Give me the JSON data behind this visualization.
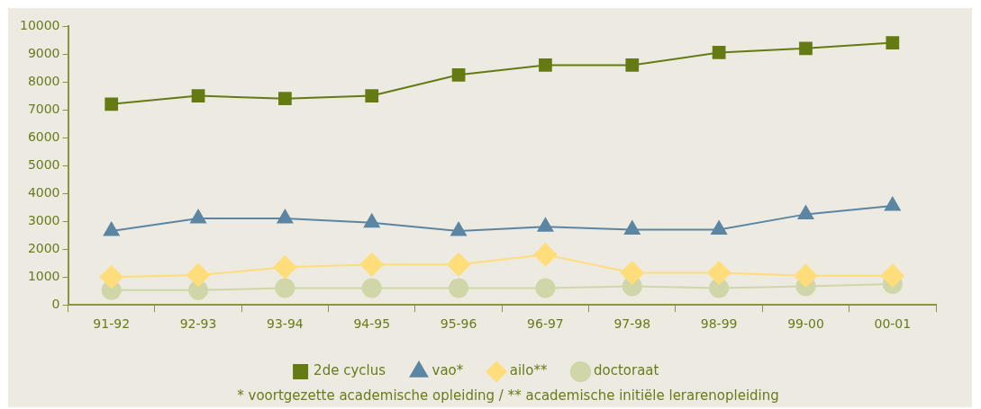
{
  "chart_data": {
    "type": "line",
    "categories": [
      "91-92",
      "92-93",
      "93-94",
      "94-95",
      "95-96",
      "96-97",
      "97-98",
      "98-99",
      "99-00",
      "00-01"
    ],
    "series": [
      {
        "name": "2de cyclus",
        "color": "#667a14",
        "marker": "square",
        "values": [
          7200,
          7500,
          7400,
          7500,
          8250,
          8600,
          8600,
          9050,
          9200,
          9400
        ]
      },
      {
        "name": "vao*",
        "color": "#5b86a3",
        "marker": "triangle",
        "values": [
          2650,
          3100,
          3100,
          2950,
          2650,
          2800,
          2700,
          2700,
          3250,
          3550
        ]
      },
      {
        "name": "ailo**",
        "color": "#fedd7a",
        "marker": "diamond",
        "values": [
          1000,
          1070,
          1350,
          1450,
          1450,
          1800,
          1150,
          1150,
          1050,
          1050
        ]
      },
      {
        "name": "doctoraat",
        "color": "#d0d6a8",
        "marker": "circle",
        "values": [
          530,
          530,
          600,
          600,
          600,
          600,
          670,
          600,
          670,
          750
        ]
      }
    ],
    "ylim": [
      0,
      10000
    ],
    "yticks": [
      0,
      1000,
      2000,
      3000,
      4000,
      5000,
      6000,
      7000,
      8000,
      9000,
      10000
    ],
    "grid": false,
    "legend": "bottom",
    "line_style": "solid",
    "annotations": [
      "* voortgezette academische opleiding / ** academische initiële lerarenopleiding"
    ]
  }
}
